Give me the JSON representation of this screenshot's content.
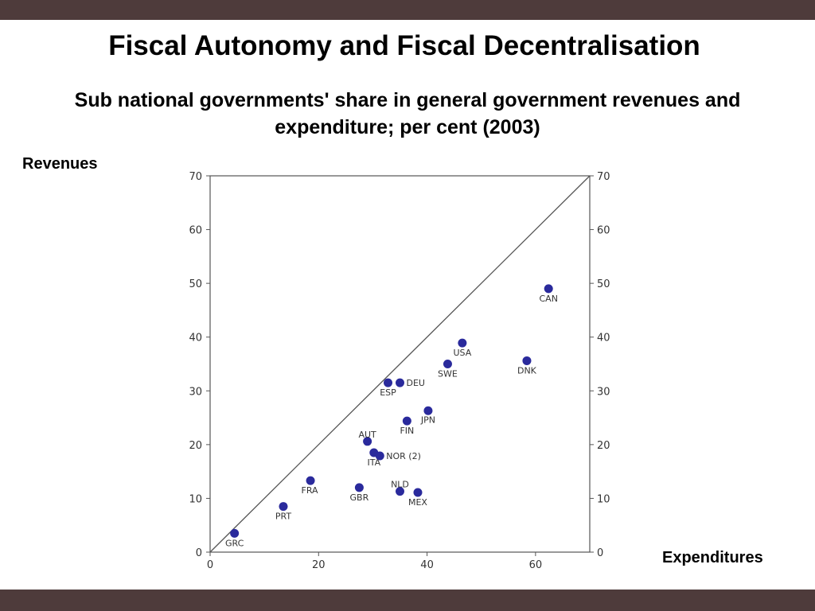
{
  "slide": {
    "title": "Fiscal Autonomy and Fiscal Decentralisation",
    "subtitle": "Sub national governments' share in general government revenues and expenditure; per cent (2003)",
    "y_axis_caption": "Revenues",
    "x_axis_caption": "Expenditures"
  },
  "chart_data": {
    "type": "scatter",
    "xlim": [
      0,
      70
    ],
    "ylim": [
      0,
      70
    ],
    "x_ticks": [
      0,
      20,
      40,
      60
    ],
    "y_ticks": [
      0,
      10,
      20,
      30,
      40,
      50,
      60,
      70
    ],
    "grid": false,
    "diagonal_line": true,
    "points": [
      {
        "label": "GRC",
        "x": 4.5,
        "y": 3.5
      },
      {
        "label": "PRT",
        "x": 13.5,
        "y": 8.5
      },
      {
        "label": "FRA",
        "x": 18.5,
        "y": 13.3
      },
      {
        "label": "GBR",
        "x": 27.5,
        "y": 12.0
      },
      {
        "label": "NLD",
        "x": 35.0,
        "y": 11.3
      },
      {
        "label": "MEX",
        "x": 38.3,
        "y": 11.1
      },
      {
        "label": "AUT",
        "x": 29.0,
        "y": 20.6
      },
      {
        "label": "ITA",
        "x": 30.2,
        "y": 18.5
      },
      {
        "label": "NOR (2)",
        "x": 31.3,
        "y": 17.9
      },
      {
        "label": "FIN",
        "x": 36.3,
        "y": 24.4
      },
      {
        "label": "JPN",
        "x": 40.2,
        "y": 26.3
      },
      {
        "label": "ESP",
        "x": 32.8,
        "y": 31.5
      },
      {
        "label": "DEU",
        "x": 35.0,
        "y": 31.5
      },
      {
        "label": "SWE",
        "x": 43.8,
        "y": 35.0
      },
      {
        "label": "USA",
        "x": 46.5,
        "y": 38.9
      },
      {
        "label": "DNK",
        "x": 58.4,
        "y": 35.6
      },
      {
        "label": "CAN",
        "x": 62.4,
        "y": 49.0
      }
    ],
    "point_color": "#2a2a9c"
  }
}
